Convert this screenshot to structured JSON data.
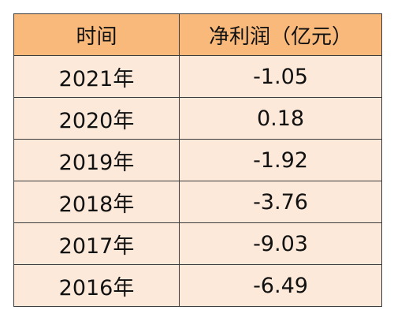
{
  "table": {
    "headers": [
      "时间",
      "净利润（亿元）"
    ],
    "rows": [
      [
        "2021年",
        "-1.05"
      ],
      [
        "2020年",
        "0.18"
      ],
      [
        "2019年",
        "-1.92"
      ],
      [
        "2018年",
        "-3.76"
      ],
      [
        "2017年",
        "-9.03"
      ],
      [
        "2016年",
        "-6.49"
      ]
    ]
  },
  "colors": {
    "header_bg": "#f8b97b",
    "row_bg": "#fde9d9",
    "border": "#3a3a3a"
  }
}
